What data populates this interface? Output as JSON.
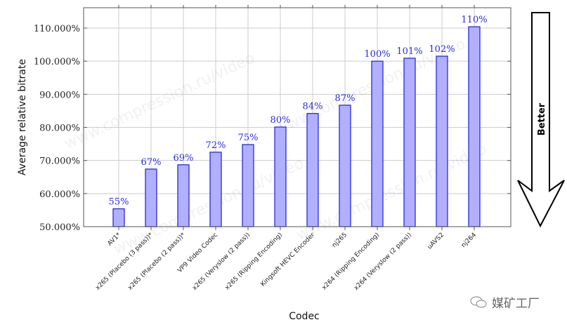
{
  "chart_data": {
    "type": "bar",
    "title": "",
    "xlabel": "Codec",
    "ylabel": "Average relative bitrate",
    "ylim": [
      50,
      115
    ],
    "yticks": [
      "50.000%",
      "60.000%",
      "70.000%",
      "80.000%",
      "90.000%",
      "100.000%",
      "110.000%"
    ],
    "ytick_values": [
      50,
      60,
      70,
      80,
      90,
      100,
      110
    ],
    "grid": true,
    "categories": [
      "AV1*",
      "x265 (Placebo (3 pass))*",
      "x265 (Placebo (2 pass))*",
      "VP9 Video Codec",
      "x265 (Veryslow (2 pass))",
      "x265 (Ripping Encoding)",
      "Kingsoft HEVC Encoder",
      "nj265",
      "x264 (Ripping Encoding)",
      "x264 (Veryslow (2 pass))",
      "uAVS2",
      "nj264"
    ],
    "values": [
      55.4,
      67.4,
      68.7,
      72.5,
      74.8,
      80.1,
      84.2,
      86.7,
      100.0,
      100.9,
      101.5,
      110.4
    ],
    "data_labels": [
      "55%",
      "67%",
      "69%",
      "72%",
      "75%",
      "80%",
      "84%",
      "87%",
      "100%",
      "101%",
      "102%",
      "110%"
    ],
    "bar_color": "#b0b0ff",
    "bar_edge_color": "#2b2bdc",
    "annotation": "Better",
    "watermark": "www.compression.ru/video"
  },
  "brand": {
    "text": "媒矿工厂",
    "icon": "wechat-icon"
  }
}
